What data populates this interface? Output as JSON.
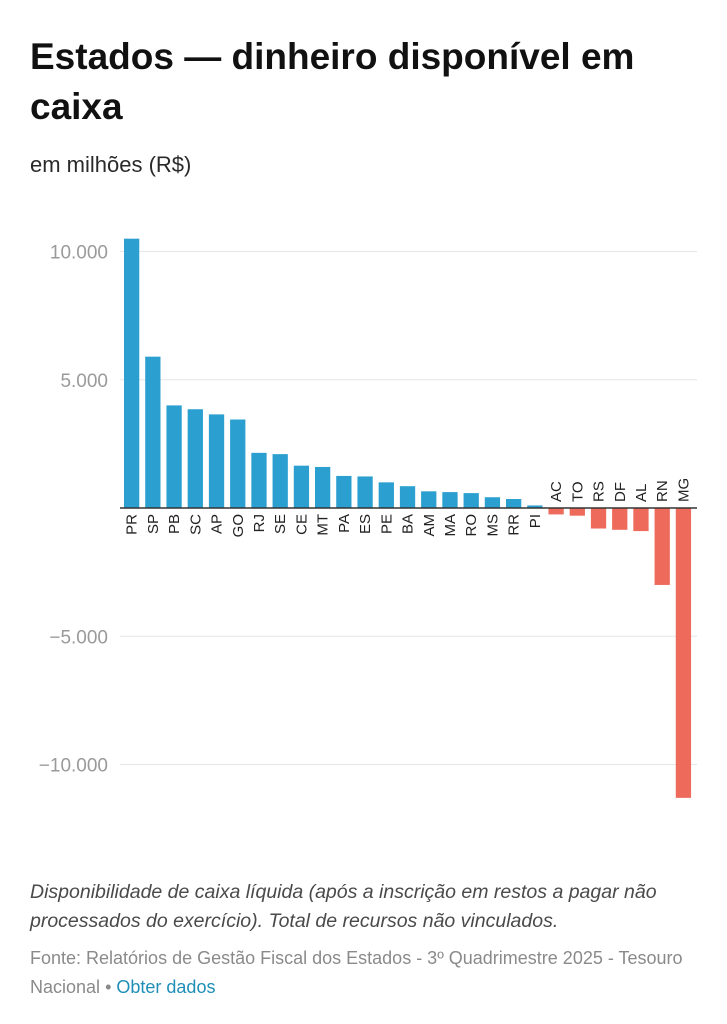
{
  "chart_data": {
    "type": "bar",
    "title": "Estados — dinheiro disponível em caixa",
    "subtitle": "em milhões (R$)",
    "categories": [
      "PR",
      "SP",
      "PB",
      "SC",
      "AP",
      "GO",
      "RJ",
      "SE",
      "CE",
      "MT",
      "PA",
      "ES",
      "PE",
      "BA",
      "AM",
      "MA",
      "RO",
      "MS",
      "RR",
      "PI",
      "AC",
      "TO",
      "RS",
      "DF",
      "AL",
      "RN",
      "MG"
    ],
    "values": [
      10500,
      5900,
      4000,
      3850,
      3650,
      3450,
      2150,
      2100,
      1650,
      1600,
      1250,
      1230,
      1000,
      850,
      650,
      620,
      580,
      420,
      350,
      100,
      -250,
      -300,
      -800,
      -850,
      -900,
      -3000,
      -11300
    ],
    "ylim": [
      -12000,
      11000
    ],
    "yticks": [
      10000,
      5000,
      -5000,
      -10000
    ],
    "ytick_labels": [
      "10.000",
      "5.000",
      "−5.000",
      "−10.000"
    ],
    "grid": true,
    "colors": {
      "positive": "#2b9fd0",
      "negative": "#ee6a5b"
    }
  },
  "footer": {
    "note": "Disponibilidade de caixa líquida (após a inscrição em restos a pagar não processados do exercício). Total de recursos não vinculados.",
    "source": "Fonte: Relatórios de Gestão Fiscal dos Estados - 3º Quadrimestre 2025 - Tesouro Nacional",
    "separator": "•",
    "link_label": "Obter dados"
  }
}
